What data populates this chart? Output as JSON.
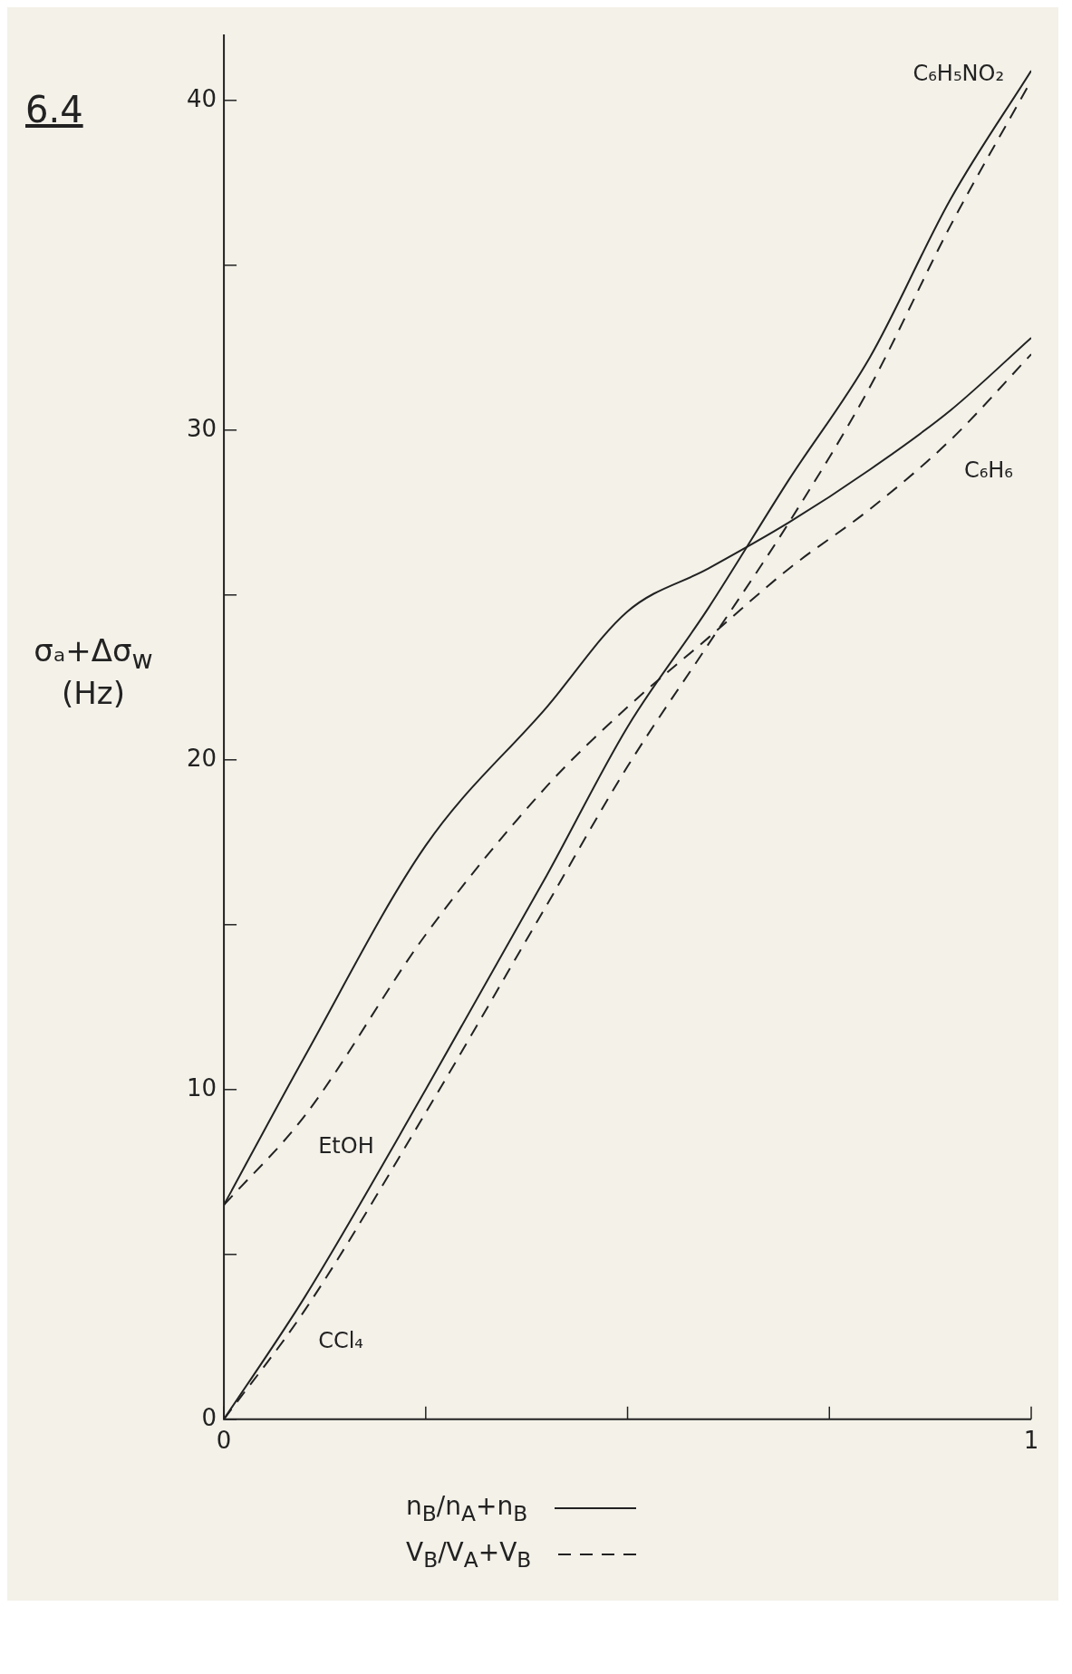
{
  "chart_data": {
    "type": "line",
    "title": "6.4",
    "ylabel": "σₐ+Δσ$_{w}$ (Hz)",
    "legend": "bottom",
    "grid": false,
    "marker": "none",
    "xlim": [
      0,
      1
    ],
    "xticks": [
      0,
      {
        "value": 0.25,
        "label": null
      },
      {
        "value": 0.5,
        "label": null
      },
      {
        "value": 0.75,
        "label": null
      },
      1
    ],
    "ylim": [
      0,
      42
    ],
    "yticks": [
      0,
      {
        "value": 5,
        "label": null
      },
      10,
      {
        "value": 15,
        "label": null
      },
      20,
      {
        "value": 25,
        "label": null
      },
      30,
      {
        "value": 35,
        "label": null
      },
      40
    ],
    "x": [
      0,
      0.1,
      0.25,
      0.4,
      0.5,
      0.6,
      0.7,
      0.8,
      0.9,
      1
    ],
    "series": [
      {
        "name": "n$_{B}$/n$_{A}$+n$_{B}$",
        "color": "#222222",
        "line_style": "solid",
        "values": [
          6.5,
          11.0,
          17.4,
          21.6,
          24.5,
          25.8,
          27.2,
          28.8,
          30.6,
          32.8
        ]
      },
      {
        "name": "V$_{B}$/V$_{A}$+V$_{B}$",
        "color": "#222222",
        "line_style": "dashed",
        "values": [
          6.5,
          9.2,
          14.7,
          19.2,
          21.6,
          23.7,
          25.8,
          27.6,
          29.7,
          32.3
        ]
      },
      {
        "color": "#222222",
        "line_style": "solid",
        "values": [
          0,
          3.7,
          10.0,
          16.5,
          21.0,
          24.6,
          28.5,
          32.2,
          37.0,
          40.9
        ]
      },
      {
        "color": "#222222",
        "line_style": "dashed",
        "values": [
          0,
          3.3,
          9.3,
          15.6,
          19.8,
          23.5,
          27.2,
          31.3,
          36.2,
          40.6
        ]
      }
    ],
    "annotations": [
      {
        "text": "EtOH",
        "x": 0.1,
        "y": 9.2
      },
      {
        "text": "CCl₄",
        "x": 0.1,
        "y": 3.3
      },
      {
        "text": "C₆H₆",
        "x": 0.9,
        "y": 29.7
      },
      {
        "text": "C₆H₅NO₂",
        "x": 1,
        "y": 40.9
      }
    ]
  }
}
